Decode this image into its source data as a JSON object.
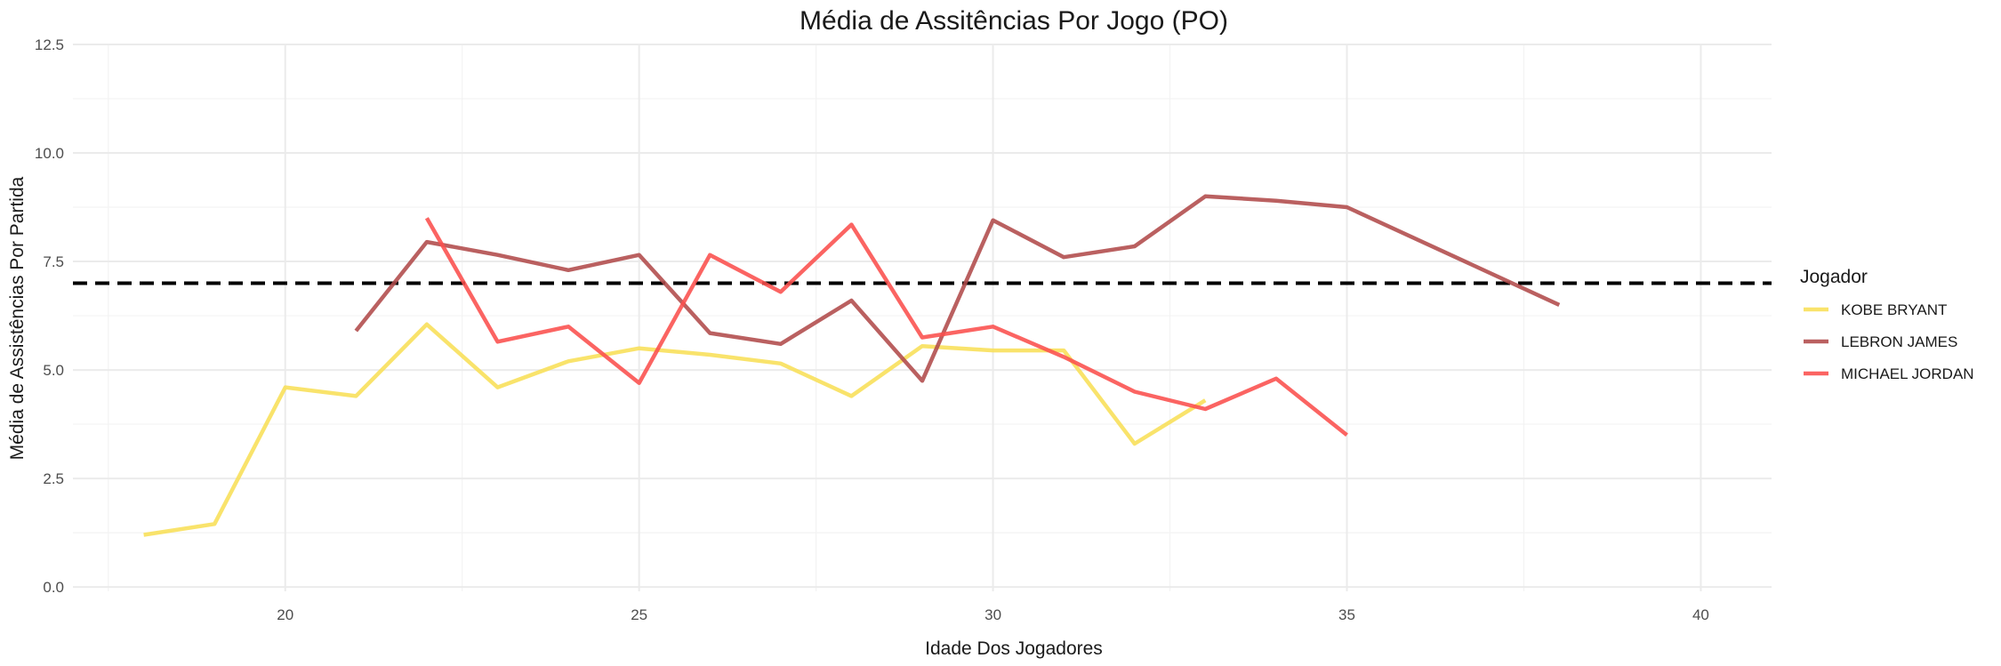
{
  "chart_data": {
    "type": "line",
    "title": "Média de Assitências Por Jogo (PO)",
    "xlabel": "Idade Dos Jogadores",
    "ylabel": "Média de Assistências Por Partida",
    "xlim": [
      17,
      41
    ],
    "ylim": [
      -0.1,
      12.5
    ],
    "xticks": [
      20,
      25,
      30,
      35,
      40
    ],
    "yticks": [
      0.0,
      2.5,
      5.0,
      7.5,
      10.0,
      12.5
    ],
    "ytick_labels": [
      "0.0",
      "2.5",
      "5.0",
      "7.5",
      "10.0",
      "12.5"
    ],
    "grid": true,
    "reference_line": {
      "y": 7.0,
      "style": "dashed",
      "color": "#000000"
    },
    "legend": {
      "title": "Jogador",
      "placement": "right"
    },
    "series": [
      {
        "name": "KOBE BRYANT",
        "color": "#f8df57",
        "x": [
          18,
          19,
          20,
          21,
          22,
          23,
          24,
          25,
          26,
          27,
          28,
          29,
          30,
          31,
          32,
          33
        ],
        "y": [
          1.2,
          1.45,
          4.6,
          4.4,
          6.05,
          4.6,
          5.2,
          5.5,
          5.35,
          5.15,
          4.4,
          5.55,
          5.45,
          5.45,
          3.3,
          4.3
        ]
      },
      {
        "name": "LEBRON JAMES",
        "color": "#b04a4a",
        "x": [
          21,
          22,
          23,
          24,
          25,
          26,
          27,
          28,
          29,
          30,
          31,
          32,
          33,
          34,
          35,
          38
        ],
        "y": [
          5.9,
          7.95,
          7.65,
          7.3,
          7.65,
          5.85,
          5.6,
          6.6,
          4.75,
          8.45,
          7.6,
          7.85,
          9.0,
          8.9,
          8.75,
          6.5
        ]
      },
      {
        "name": "MICHAEL JORDAN",
        "color": "#fb4e4c",
        "x": [
          22,
          23,
          24,
          25,
          26,
          27,
          28,
          29,
          30,
          31,
          32,
          33,
          34,
          35
        ],
        "y": [
          8.5,
          5.65,
          6.0,
          4.7,
          7.65,
          6.8,
          8.35,
          5.75,
          6.0,
          5.3,
          4.5,
          4.1,
          4.8,
          3.5
        ]
      }
    ]
  }
}
